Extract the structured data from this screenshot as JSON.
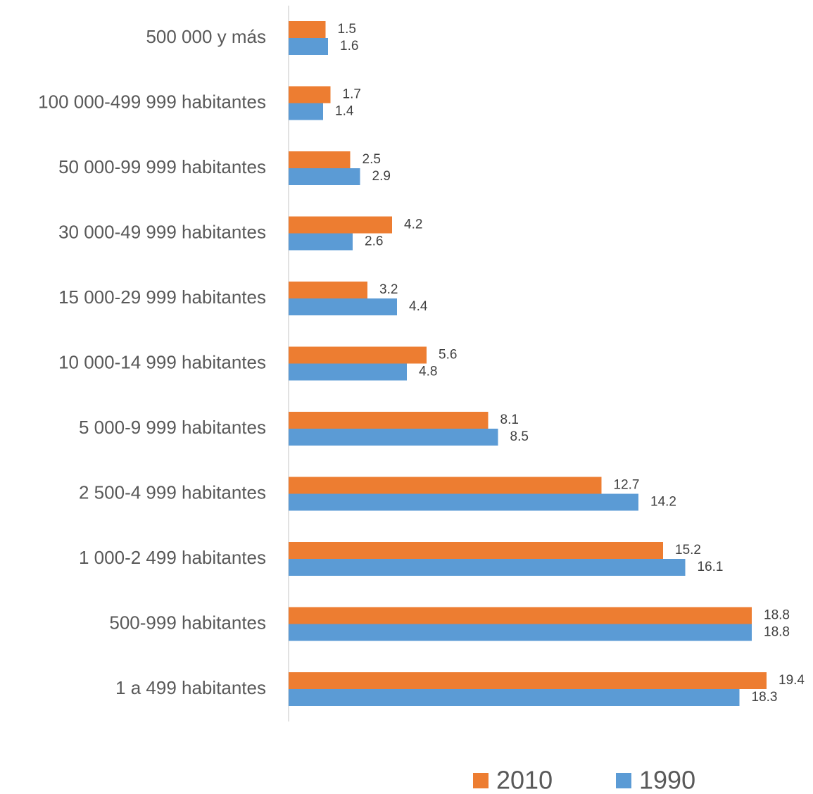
{
  "chart_data": {
    "type": "barh",
    "categories": [
      "500 000 y más",
      "100 000-499 999 habitantes",
      "50 000-99 999 habitantes",
      "30 000-49 999 habitantes",
      "15 000-29 999 habitantes",
      "10 000-14 999 habitantes",
      "5 000-9 999 habitantes",
      "2 500-4 999 habitantes",
      "1 000-2 499 habitantes",
      "500-999 habitantes",
      "1 a 499 habitantes"
    ],
    "series": [
      {
        "name": "2010",
        "color": "#ed7d31",
        "values": [
          1.5,
          1.7,
          2.5,
          4.2,
          3.2,
          5.6,
          8.1,
          12.7,
          15.2,
          18.8,
          19.4
        ]
      },
      {
        "name": "1990",
        "color": "#5b9bd5",
        "values": [
          1.6,
          1.4,
          2.9,
          2.6,
          4.4,
          4.8,
          8.5,
          14.2,
          16.1,
          18.8,
          18.3
        ]
      }
    ],
    "xlim": [
      0,
      20
    ],
    "legend": "bottom"
  }
}
